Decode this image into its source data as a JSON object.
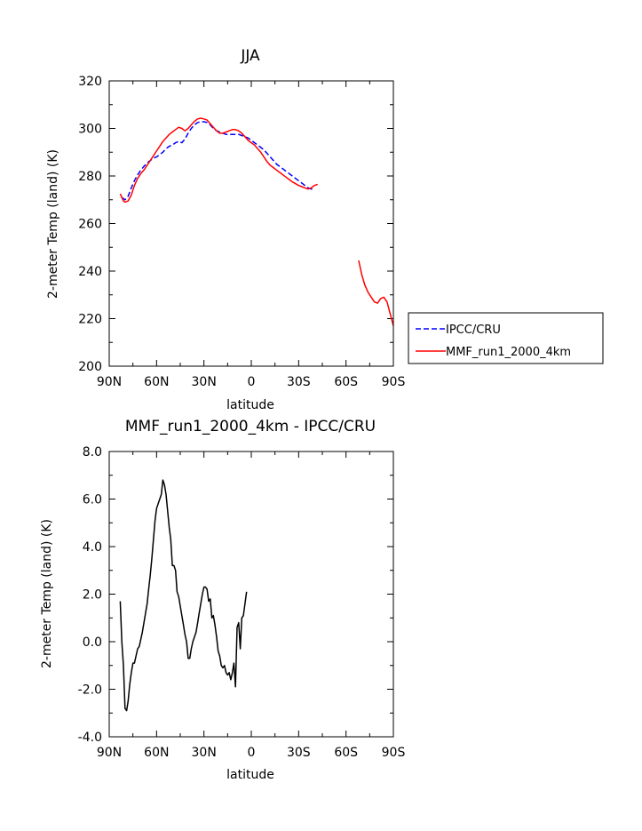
{
  "chart_data": [
    {
      "type": "line",
      "title": "JJA",
      "xlabel": "latitude",
      "ylabel": "2-meter Temp (land) (K)",
      "xlim": [
        90,
        -90
      ],
      "ylim": [
        200,
        320
      ],
      "x_tick_labels": [
        "90N",
        "60N",
        "30N",
        "0",
        "30S",
        "60S",
        "90S"
      ],
      "y_tick_labels": [
        "200",
        "220",
        "240",
        "260",
        "280",
        "300",
        "320"
      ],
      "legend_position": "outside-right",
      "grid": false,
      "series": [
        {
          "name": "IPCC/CRU",
          "color": "#0000ff",
          "dash": "dashed",
          "segments": [
            [
              [
                82,
                271.0
              ],
              [
                80,
                270.0
              ],
              [
                78,
                271.5
              ],
              [
                76,
                275.0
              ],
              [
                74,
                278.0
              ],
              [
                72,
                280.5
              ],
              [
                70,
                282.5
              ],
              [
                68,
                284.0
              ],
              [
                66,
                285.5
              ],
              [
                64,
                286.5
              ],
              [
                62,
                287.5
              ],
              [
                60,
                288.0
              ],
              [
                58,
                289.0
              ],
              [
                56,
                290.0
              ],
              [
                54,
                291.5
              ],
              [
                52,
                292.5
              ],
              [
                50,
                293.0
              ],
              [
                48,
                294.0
              ],
              [
                46,
                294.5
              ],
              [
                44,
                294.0
              ],
              [
                42,
                295.5
              ],
              [
                40,
                298.0
              ],
              [
                38,
                300.0
              ],
              [
                36,
                301.5
              ],
              [
                34,
                302.5
              ],
              [
                32,
                302.8
              ],
              [
                30,
                302.8
              ],
              [
                28,
                302.5
              ],
              [
                26,
                301.5
              ],
              [
                24,
                300.0
              ],
              [
                22,
                299.0
              ],
              [
                20,
                298.5
              ],
              [
                18,
                298.0
              ],
              [
                16,
                297.5
              ],
              [
                14,
                297.5
              ],
              [
                12,
                297.5
              ],
              [
                10,
                297.5
              ],
              [
                8,
                297.5
              ],
              [
                6,
                297.0
              ],
              [
                4,
                296.5
              ],
              [
                2,
                296.0
              ],
              [
                0,
                295.0
              ],
              [
                -2,
                294.0
              ],
              [
                -4,
                293.0
              ],
              [
                -6,
                292.0
              ],
              [
                -8,
                291.0
              ],
              [
                -10,
                289.5
              ],
              [
                -12,
                288.0
              ],
              [
                -14,
                286.5
              ],
              [
                -16,
                285.0
              ],
              [
                -18,
                284.0
              ],
              [
                -20,
                283.0
              ],
              [
                -22,
                282.0
              ],
              [
                -24,
                281.0
              ],
              [
                -26,
                280.0
              ],
              [
                -28,
                279.0
              ],
              [
                -30,
                278.0
              ],
              [
                -32,
                277.0
              ],
              [
                -34,
                276.0
              ],
              [
                -36,
                275.0
              ],
              [
                -38,
                274.5
              ],
              [
                -40,
                274.0
              ]
            ]
          ]
        },
        {
          "name": "MMF_run1_2000_4km",
          "color": "#ff0000",
          "dash": "solid",
          "segments": [
            [
              [
                83,
                272.5
              ],
              [
                82,
                271.0
              ],
              [
                81,
                269.5
              ],
              [
                80,
                269.0
              ],
              [
                78,
                269.5
              ],
              [
                76,
                272.0
              ],
              [
                74,
                276.0
              ],
              [
                72,
                279.0
              ],
              [
                70,
                281.0
              ],
              [
                68,
                282.5
              ],
              [
                66,
                284.5
              ],
              [
                64,
                286.5
              ],
              [
                62,
                288.5
              ],
              [
                60,
                290.5
              ],
              [
                58,
                292.5
              ],
              [
                56,
                294.5
              ],
              [
                54,
                296.0
              ],
              [
                52,
                297.5
              ],
              [
                50,
                298.5
              ],
              [
                48,
                299.5
              ],
              [
                46,
                300.5
              ],
              [
                44,
                300.0
              ],
              [
                42,
                299.0
              ],
              [
                40,
                300.0
              ],
              [
                38,
                301.5
              ],
              [
                36,
                303.0
              ],
              [
                34,
                304.0
              ],
              [
                32,
                304.3
              ],
              [
                30,
                304.0
              ],
              [
                28,
                303.5
              ],
              [
                26,
                302.0
              ],
              [
                24,
                300.5
              ],
              [
                22,
                299.0
              ],
              [
                20,
                298.0
              ],
              [
                18,
                298.0
              ],
              [
                16,
                298.5
              ],
              [
                14,
                299.0
              ],
              [
                12,
                299.5
              ],
              [
                10,
                299.5
              ],
              [
                8,
                299.0
              ],
              [
                6,
                298.0
              ],
              [
                4,
                296.5
              ],
              [
                2,
                295.0
              ],
              [
                0,
                294.0
              ],
              [
                -2,
                293.0
              ],
              [
                -4,
                291.5
              ],
              [
                -6,
                290.0
              ],
              [
                -8,
                288.0
              ],
              [
                -10,
                286.0
              ],
              [
                -12,
                284.5
              ],
              [
                -14,
                283.5
              ],
              [
                -16,
                282.5
              ],
              [
                -18,
                281.5
              ],
              [
                -20,
                280.5
              ],
              [
                -22,
                279.5
              ],
              [
                -24,
                278.5
              ],
              [
                -26,
                277.5
              ],
              [
                -28,
                276.8
              ],
              [
                -30,
                276.0
              ],
              [
                -32,
                275.5
              ],
              [
                -34,
                275.0
              ],
              [
                -36,
                274.5
              ],
              [
                -38,
                275.0
              ],
              [
                -40,
                276.0
              ],
              [
                -42,
                276.5
              ]
            ],
            [
              [
                -68,
                244.5
              ],
              [
                -70,
                238.5
              ],
              [
                -72,
                234.0
              ],
              [
                -74,
                231.0
              ],
              [
                -76,
                229.0
              ],
              [
                -78,
                227.0
              ],
              [
                -80,
                226.5
              ],
              [
                -82,
                228.5
              ],
              [
                -84,
                229.0
              ],
              [
                -86,
                227.0
              ],
              [
                -88,
                222.0
              ],
              [
                -90,
                217.0
              ]
            ]
          ]
        }
      ]
    },
    {
      "type": "line",
      "title": "MMF_run1_2000_4km - IPCC/CRU",
      "xlabel": "latitude",
      "ylabel": "2-meter Temp (land) (K)",
      "xlim": [
        90,
        -90
      ],
      "ylim": [
        -4.0,
        8.0
      ],
      "x_tick_labels": [
        "90N",
        "60N",
        "30N",
        "0",
        "30S",
        "60S",
        "90S"
      ],
      "y_tick_labels": [
        "-4.0",
        "-2.0",
        "0.0",
        "2.0",
        "4.0",
        "6.0",
        "8.0"
      ],
      "grid": false,
      "series": [
        {
          "color": "#000000",
          "dash": "solid",
          "segments": [
            [
              [
                83,
                1.7
              ],
              [
                82,
                0.0
              ],
              [
                81,
                -1.0
              ],
              [
                80,
                -2.8
              ],
              [
                79,
                -2.9
              ],
              [
                78,
                -2.5
              ],
              [
                77,
                -1.8
              ],
              [
                76,
                -1.3
              ],
              [
                75,
                -0.9
              ],
              [
                74,
                -0.9
              ],
              [
                73,
                -0.6
              ],
              [
                72,
                -0.3
              ],
              [
                71,
                -0.2
              ],
              [
                70,
                0.1
              ],
              [
                69,
                0.4
              ],
              [
                68,
                0.8
              ],
              [
                67,
                1.2
              ],
              [
                66,
                1.6
              ],
              [
                65,
                2.2
              ],
              [
                64,
                2.8
              ],
              [
                63,
                3.5
              ],
              [
                62,
                4.3
              ],
              [
                61,
                5.1
              ],
              [
                60,
                5.6
              ],
              [
                59,
                5.8
              ],
              [
                58,
                6.0
              ],
              [
                57,
                6.2
              ],
              [
                56,
                6.8
              ],
              [
                55,
                6.6
              ],
              [
                54,
                6.2
              ],
              [
                53,
                5.5
              ],
              [
                52,
                4.8
              ],
              [
                51,
                4.3
              ],
              [
                50,
                3.2
              ],
              [
                49,
                3.2
              ],
              [
                48,
                3.0
              ],
              [
                47,
                2.1
              ],
              [
                46,
                1.9
              ],
              [
                45,
                1.5
              ],
              [
                44,
                1.1
              ],
              [
                43,
                0.7
              ],
              [
                42,
                0.3
              ],
              [
                41,
                0.0
              ],
              [
                40,
                -0.7
              ],
              [
                39,
                -0.7
              ],
              [
                38,
                -0.3
              ],
              [
                37,
                0.0
              ],
              [
                36,
                0.2
              ],
              [
                35,
                0.4
              ],
              [
                34,
                0.8
              ],
              [
                33,
                1.2
              ],
              [
                32,
                1.6
              ],
              [
                31,
                2.0
              ],
              [
                30,
                2.3
              ],
              [
                29,
                2.3
              ],
              [
                28,
                2.2
              ],
              [
                27,
                1.7
              ],
              [
                26,
                1.8
              ],
              [
                25,
                1.0
              ],
              [
                24,
                1.1
              ],
              [
                23,
                0.7
              ],
              [
                22,
                0.2
              ],
              [
                21,
                -0.4
              ],
              [
                20,
                -0.6
              ],
              [
                19,
                -1.0
              ],
              [
                18,
                -1.1
              ],
              [
                17,
                -1.0
              ],
              [
                16,
                -1.3
              ],
              [
                15,
                -1.4
              ],
              [
                14,
                -1.3
              ],
              [
                13,
                -1.6
              ],
              [
                12,
                -1.3
              ],
              [
                11,
                -0.9
              ],
              [
                10,
                -1.9
              ],
              [
                9,
                0.6
              ],
              [
                8,
                0.8
              ],
              [
                7,
                -0.3
              ],
              [
                6,
                1.0
              ],
              [
                5,
                1.1
              ],
              [
                4,
                1.6
              ],
              [
                3,
                2.1
              ]
            ]
          ]
        }
      ]
    }
  ]
}
